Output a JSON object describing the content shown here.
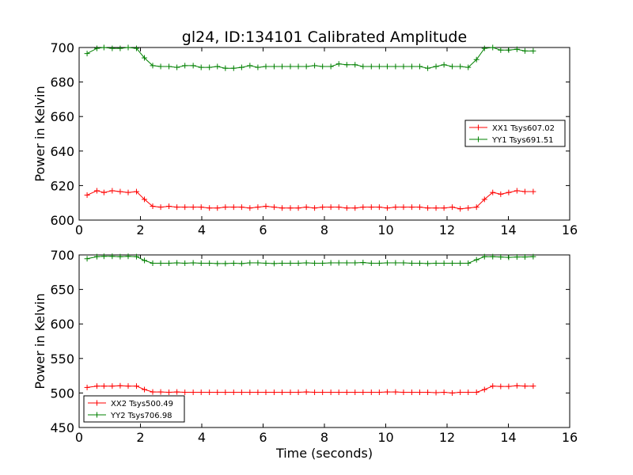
{
  "figure": {
    "title": "gl24, ID:134101 Calibrated Amplitude",
    "xlabel": "Time (seconds)"
  },
  "colors": {
    "xx": "#ff0000",
    "yy": "#008000",
    "axis": "#000000"
  },
  "chart_data": [
    {
      "type": "line",
      "ylabel": "Power in Kelvin",
      "xlim": [
        0,
        16
      ],
      "ylim": [
        600,
        700
      ],
      "x_ticks": [
        "0",
        "2",
        "4",
        "6",
        "8",
        "10",
        "12",
        "14",
        "16"
      ],
      "y_ticks": [
        "600",
        "620",
        "640",
        "660",
        "680",
        "700"
      ],
      "legend_position": "center-right",
      "x": [
        0.26,
        0.58,
        0.81,
        1.08,
        1.34,
        1.6,
        1.87,
        2.13,
        2.4,
        2.66,
        2.93,
        3.19,
        3.45,
        3.72,
        3.98,
        4.25,
        4.51,
        4.77,
        5.04,
        5.3,
        5.57,
        5.83,
        6.09,
        6.36,
        6.62,
        6.89,
        7.15,
        7.41,
        7.68,
        7.94,
        8.21,
        8.47,
        8.73,
        9.0,
        9.26,
        9.53,
        9.79,
        10.05,
        10.32,
        10.58,
        10.85,
        11.11,
        11.37,
        11.64,
        11.9,
        12.17,
        12.43,
        12.69,
        12.96,
        13.22,
        13.49,
        13.75,
        14.01,
        14.28,
        14.54,
        14.81
      ],
      "series": [
        {
          "name": "XX1 Tsys607.02",
          "color": "#ff0000",
          "values": [
            614.5,
            617,
            616,
            617,
            616.5,
            616,
            616.5,
            612,
            608,
            607.5,
            608,
            607.5,
            607.5,
            607.5,
            607.5,
            607,
            607,
            607.5,
            607.5,
            607.5,
            607,
            607.5,
            608,
            607.5,
            607,
            607,
            607,
            607.5,
            607,
            607.5,
            607.5,
            607.5,
            607,
            607,
            607.5,
            607.5,
            607.5,
            607,
            607.5,
            607.5,
            607.5,
            607.5,
            607,
            607,
            607,
            607.5,
            606.5,
            607,
            607.5,
            612,
            616,
            615,
            616,
            617,
            616.5,
            616.5
          ]
        },
        {
          "name": "YY1 Tsys691.51",
          "color": "#008000",
          "values": [
            696.5,
            699.5,
            700,
            699.5,
            699.5,
            700,
            699.5,
            694,
            689.5,
            689,
            689,
            688.5,
            689.5,
            689.5,
            688.5,
            688.5,
            689,
            688,
            688,
            688.5,
            689.5,
            688.5,
            689,
            689,
            689,
            689,
            689,
            689,
            689.5,
            689,
            689,
            690.5,
            690,
            690,
            689,
            689,
            689,
            689,
            689,
            689,
            689,
            689,
            688,
            689,
            690,
            689,
            689,
            688.5,
            693,
            699.5,
            700,
            698.5,
            698.5,
            699,
            698,
            698
          ]
        }
      ]
    },
    {
      "type": "line",
      "ylabel": "Power in Kelvin",
      "xlabel": "Time (seconds)",
      "xlim": [
        0,
        16
      ],
      "ylim": [
        450,
        700
      ],
      "x_ticks": [
        "0",
        "2",
        "4",
        "6",
        "8",
        "10",
        "12",
        "14",
        "16"
      ],
      "y_ticks": [
        "450",
        "500",
        "550",
        "600",
        "650",
        "700"
      ],
      "legend_position": "lower-left",
      "x": [
        0.26,
        0.58,
        0.81,
        1.08,
        1.34,
        1.6,
        1.87,
        2.13,
        2.4,
        2.66,
        2.93,
        3.19,
        3.45,
        3.72,
        3.98,
        4.25,
        4.51,
        4.77,
        5.04,
        5.3,
        5.57,
        5.83,
        6.09,
        6.36,
        6.62,
        6.89,
        7.15,
        7.41,
        7.68,
        7.94,
        8.21,
        8.47,
        8.73,
        9.0,
        9.26,
        9.53,
        9.79,
        10.05,
        10.32,
        10.58,
        10.85,
        11.11,
        11.37,
        11.64,
        11.9,
        12.17,
        12.43,
        12.69,
        12.96,
        13.22,
        13.49,
        13.75,
        14.01,
        14.28,
        14.54,
        14.81
      ],
      "series": [
        {
          "name": "XX2 Tsys500.49",
          "color": "#ff0000",
          "values": [
            508,
            510,
            510,
            510,
            510.5,
            510,
            510,
            505,
            501.5,
            501.5,
            501,
            501.5,
            501,
            501,
            501,
            501,
            501,
            501,
            501,
            501,
            501,
            501,
            501,
            501,
            501,
            501,
            501,
            501.5,
            501,
            501,
            501,
            501,
            501,
            501,
            501,
            501,
            501,
            501.5,
            501.5,
            501,
            501,
            501,
            501,
            500.5,
            501,
            500,
            501,
            501,
            501,
            505,
            510,
            509.5,
            509.5,
            510.5,
            510,
            510
          ]
        },
        {
          "name": "YY2 Tsys706.98",
          "color": "#008000",
          "values": [
            694.5,
            697.5,
            698,
            698,
            697.5,
            698,
            697.5,
            692,
            688,
            688,
            688,
            688.5,
            688,
            688.5,
            688,
            688,
            687.5,
            687.5,
            688,
            687.5,
            688.5,
            688.5,
            688,
            687.5,
            688,
            688,
            688,
            688.5,
            688,
            688,
            688.5,
            688.5,
            688.5,
            688.5,
            689,
            688,
            688,
            688.5,
            688.5,
            688.5,
            688,
            688,
            687.5,
            688,
            688,
            688,
            688,
            688,
            693,
            697.5,
            697.5,
            697,
            696.5,
            697,
            697,
            697.5
          ]
        }
      ]
    }
  ]
}
